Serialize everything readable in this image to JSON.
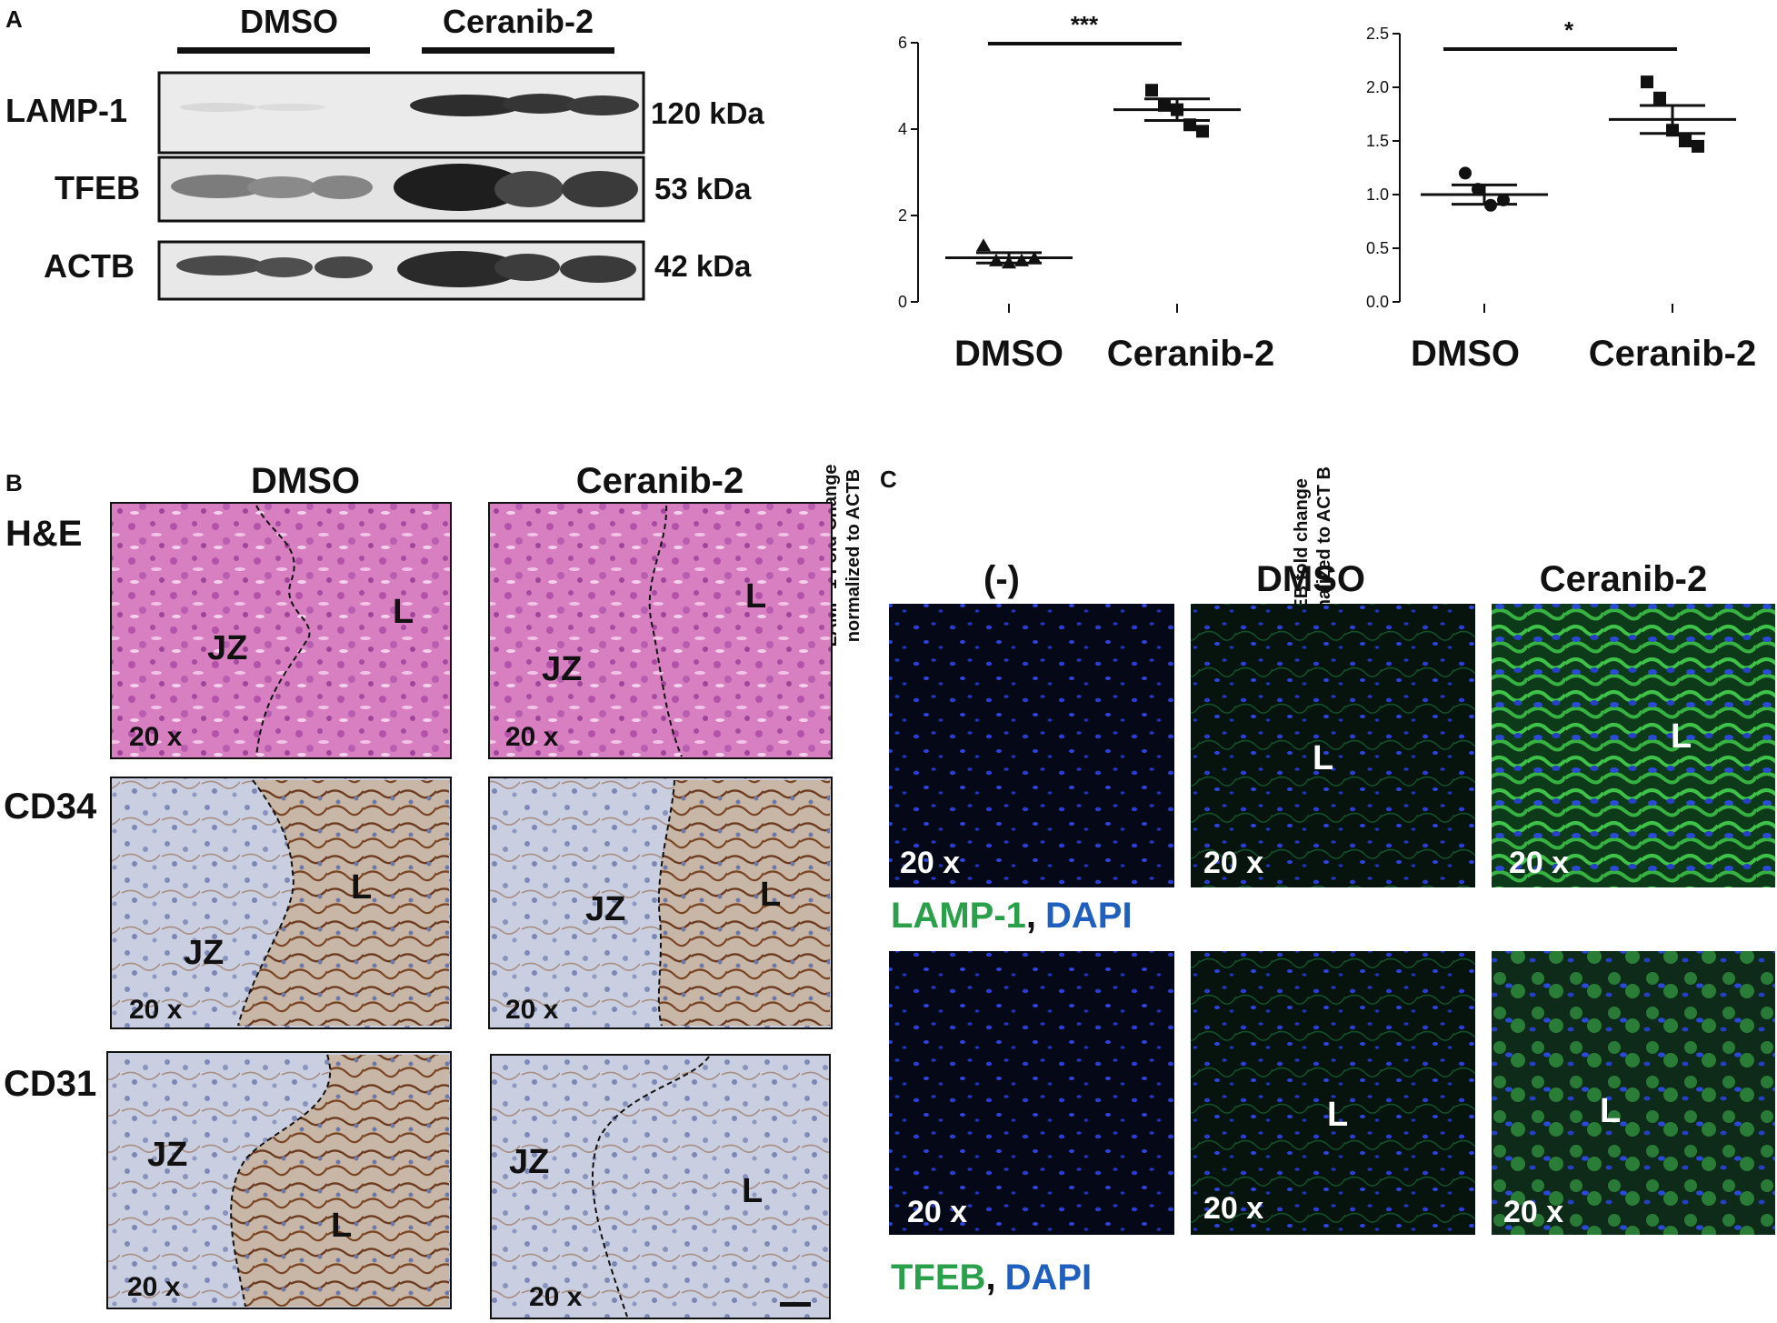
{
  "panel_letters": {
    "a": "A",
    "b": "B",
    "c": "C"
  },
  "western_blot": {
    "groups": [
      "DMSO",
      "Ceranib-2"
    ],
    "rows": [
      {
        "protein": "LAMP-1",
        "size": "120 kDa"
      },
      {
        "protein": "TFEB",
        "size": "53 kDa"
      },
      {
        "protein": "ACTB",
        "size": "42 kDa"
      }
    ]
  },
  "chart_data": [
    {
      "type": "scatter",
      "ylabel_line1": "LAMP-1 Fold Change",
      "ylabel_line2": "normalized to ACTB",
      "categories": [
        "DMSO",
        "Ceranib-2"
      ],
      "ylim": [
        0,
        6
      ],
      "yticks": [
        "0",
        "2",
        "4",
        "6"
      ],
      "significance": "***",
      "series": [
        {
          "category": "DMSO",
          "marker": "triangle",
          "mean": 1.02,
          "sem": 0.12,
          "points": [
            1.3,
            0.95,
            0.9,
            0.95,
            1.0
          ]
        },
        {
          "category": "Ceranib-2",
          "marker": "square",
          "mean": 4.45,
          "sem": 0.25,
          "points": [
            4.9,
            4.55,
            4.45,
            4.1,
            3.95
          ]
        }
      ]
    },
    {
      "type": "scatter",
      "ylabel_line1": "TFEB fold change",
      "ylabel_line2": "normalized to ACT B",
      "categories": [
        "DMSO",
        "Ceranib-2"
      ],
      "ylim": [
        0,
        2.5
      ],
      "yticks": [
        "0.0",
        "0.5",
        "1.0",
        "1.5",
        "2.0",
        "2.5"
      ],
      "significance": "*",
      "series": [
        {
          "category": "DMSO",
          "marker": "circle",
          "mean": 1.0,
          "sem": 0.09,
          "points": [
            1.2,
            1.05,
            0.9,
            0.95
          ]
        },
        {
          "category": "Ceranib-2",
          "marker": "square",
          "mean": 1.7,
          "sem": 0.13,
          "points": [
            2.05,
            1.9,
            1.6,
            1.5,
            1.45
          ]
        }
      ]
    }
  ],
  "histology": {
    "columns": [
      "DMSO",
      "Ceranib-2"
    ],
    "rows": [
      "H&E",
      "CD34",
      "CD31"
    ],
    "magnification": "20 x",
    "zone_jz": "JZ",
    "zone_l": "L"
  },
  "fluorescence": {
    "columns": [
      "(-)",
      "DMSO",
      "Ceranib-2"
    ],
    "magnification": "20 x",
    "zone_l": "L",
    "legend1": {
      "marker": "LAMP-1",
      "sep": ",",
      "dapi": "DAPI"
    },
    "legend2": {
      "marker": "TFEB",
      "sep": ",",
      "dapi": "DAPI"
    },
    "colors": {
      "green": "#2aa04a",
      "blue": "#1f5fbf"
    }
  }
}
